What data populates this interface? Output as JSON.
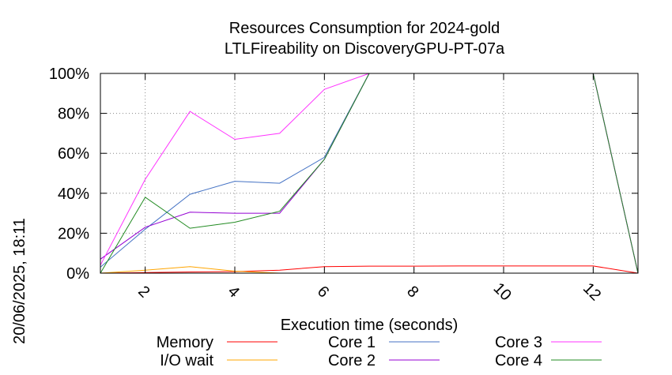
{
  "chart_data": {
    "type": "line",
    "title_line1": "Resources Consumption for 2024-gold",
    "title_line2": "LTLFireability on DiscoveryGPU-PT-07a",
    "xlabel": "Execution time (seconds)",
    "ylabel": "",
    "date_label": "20/06/2025, 18:11",
    "xlim": [
      1,
      13
    ],
    "ylim": [
      0,
      100
    ],
    "x_ticks": [
      2,
      4,
      6,
      8,
      10,
      12
    ],
    "x_tick_labels": [
      "2",
      "4",
      "6",
      "8",
      "10",
      "12"
    ],
    "y_ticks": [
      0,
      20,
      40,
      60,
      80,
      100
    ],
    "y_tick_labels": [
      "0%",
      "20%",
      "40%",
      "60%",
      "80%",
      "100%"
    ],
    "grid": true,
    "legend_position": "bottom",
    "series": [
      {
        "name": "Memory",
        "color": "#ff0000",
        "x": [
          1,
          2,
          3,
          4,
          5,
          6,
          7,
          8,
          9,
          10,
          11,
          12,
          13
        ],
        "y": [
          0,
          0.3,
          0.6,
          0.8,
          1.5,
          3.3,
          3.5,
          3.5,
          3.6,
          3.6,
          3.6,
          3.6,
          0
        ]
      },
      {
        "name": "I/O wait",
        "color": "#ffa500",
        "x": [
          1,
          2,
          3,
          4,
          5,
          6,
          7,
          8,
          9,
          10,
          11,
          12,
          13
        ],
        "y": [
          0,
          1.5,
          3.3,
          1.0,
          0,
          0,
          0,
          0,
          0,
          0,
          0,
          0,
          0
        ]
      },
      {
        "name": "Core 1",
        "color": "#4472c4",
        "x": [
          1,
          2,
          3,
          4,
          5,
          6,
          7,
          8,
          9,
          10,
          11,
          12,
          13
        ],
        "y": [
          3,
          22,
          39.5,
          46,
          45,
          58,
          100,
          100,
          100,
          100,
          100,
          100,
          0
        ]
      },
      {
        "name": "Core 2",
        "color": "#9400d3",
        "x": [
          1,
          2,
          3,
          4,
          5,
          6,
          7,
          8,
          9,
          10,
          11,
          12,
          13
        ],
        "y": [
          7,
          23,
          30.5,
          30,
          30,
          57,
          100,
          100,
          100,
          100,
          100,
          100,
          0
        ]
      },
      {
        "name": "Core 3",
        "color": "#ff33ff",
        "x": [
          1,
          2,
          3,
          4,
          5,
          6,
          7,
          8,
          9,
          10,
          11,
          12,
          13
        ],
        "y": [
          4,
          47,
          81,
          67,
          70,
          92,
          100,
          100,
          100,
          100,
          100,
          100,
          0
        ]
      },
      {
        "name": "Core 4",
        "color": "#228b22",
        "x": [
          1,
          2,
          3,
          4,
          5,
          6,
          7,
          8,
          9,
          10,
          11,
          12,
          13
        ],
        "y": [
          0,
          38,
          22.5,
          25.5,
          31,
          57,
          100,
          100,
          100,
          100,
          100,
          100,
          0
        ]
      }
    ]
  }
}
